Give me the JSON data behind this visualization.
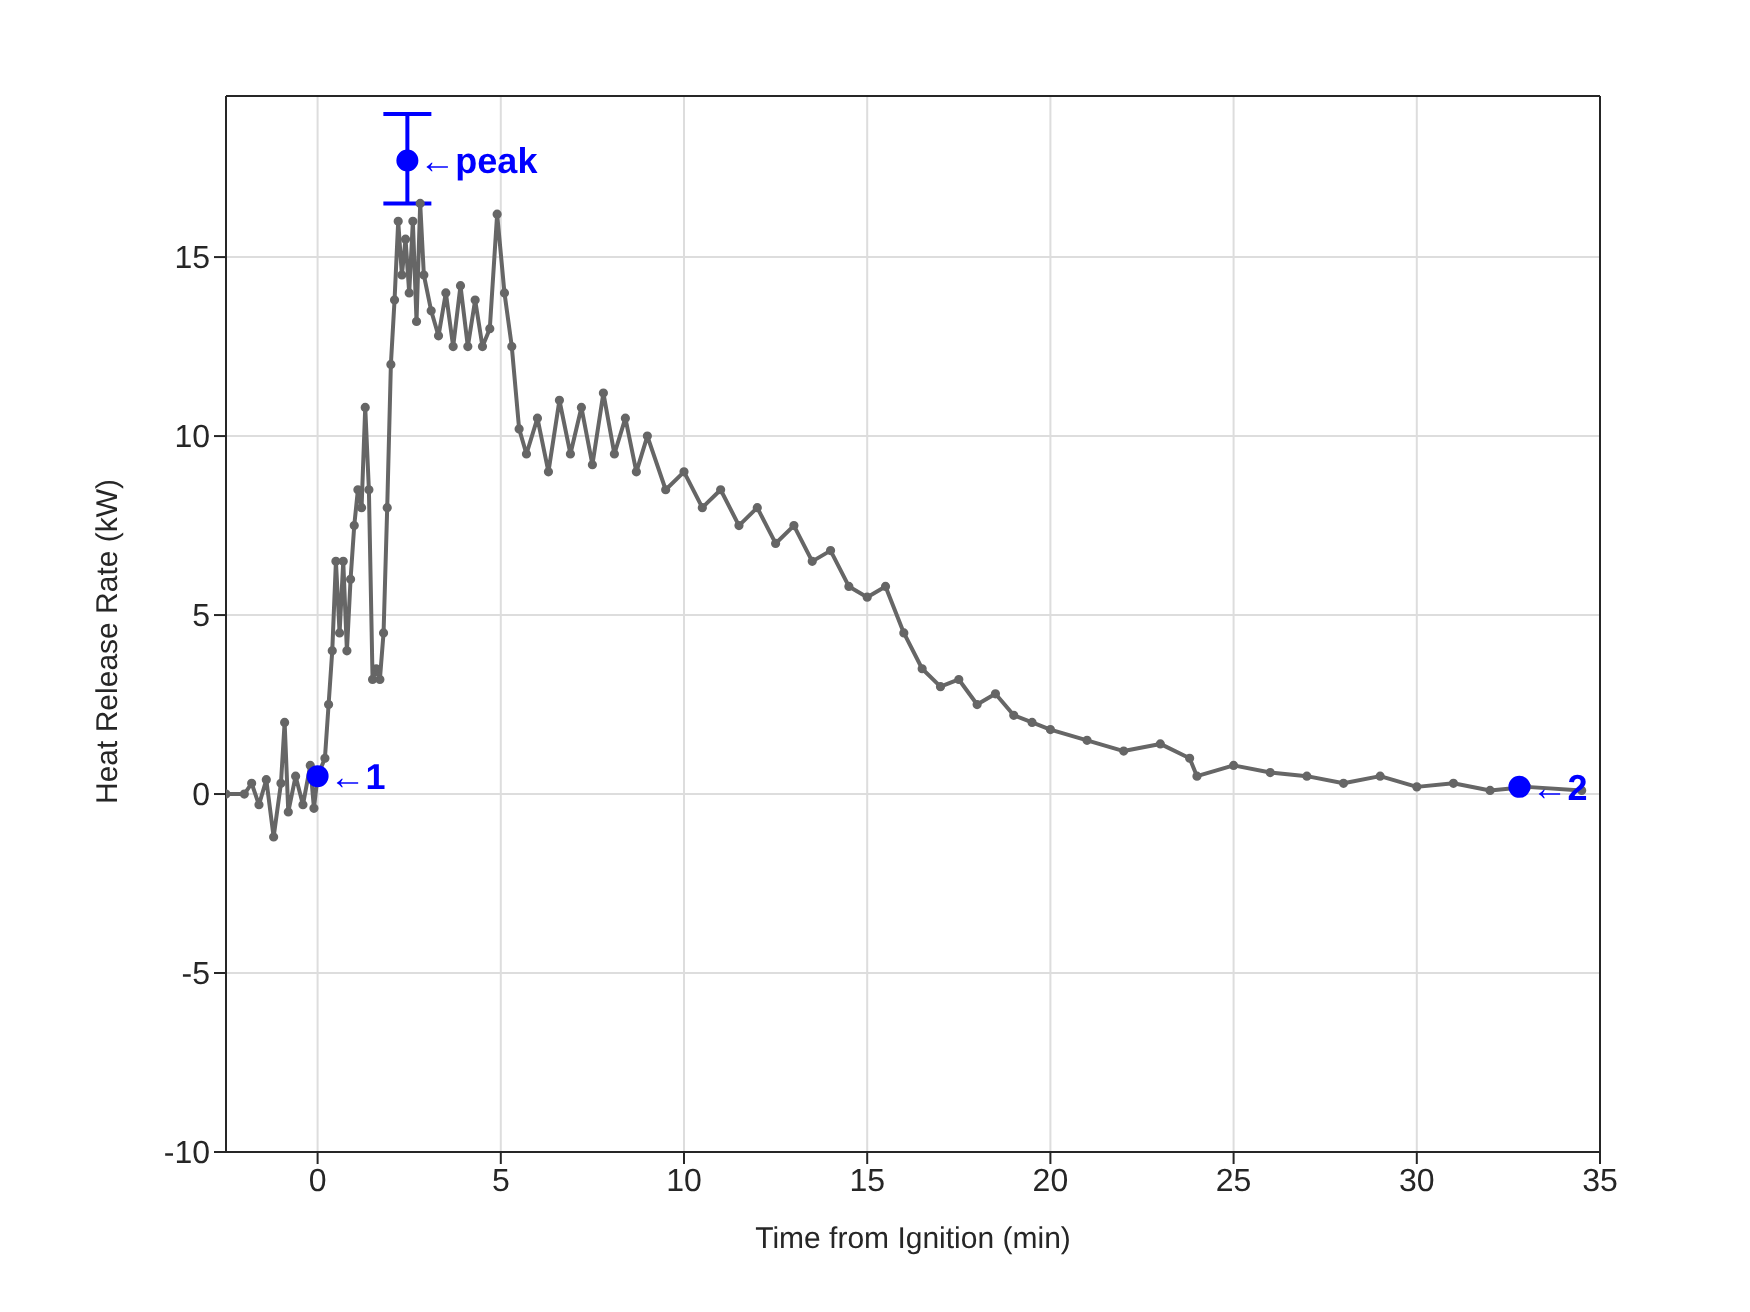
{
  "chart_data": {
    "type": "line",
    "xlabel": "Time from Ignition (min)",
    "ylabel": "Heat Release Rate (kW)",
    "xlim": [
      -2.5,
      35
    ],
    "xticks": [
      0,
      5,
      10,
      15,
      20,
      25,
      30,
      35
    ],
    "ylim": [
      -10,
      19.5
    ],
    "yticks": [
      -10,
      -5,
      0,
      5,
      10,
      15
    ],
    "grid": true,
    "marker": "circle",
    "series": [
      {
        "color": "#666666",
        "x": [
          -2.5,
          -2.0,
          -1.8,
          -1.6,
          -1.4,
          -1.2,
          -1.0,
          -0.9,
          -0.8,
          -0.6,
          -0.4,
          -0.2,
          -0.1,
          0.0,
          0.2,
          0.3,
          0.4,
          0.5,
          0.6,
          0.7,
          0.8,
          0.9,
          1.0,
          1.1,
          1.2,
          1.3,
          1.4,
          1.5,
          1.6,
          1.7,
          1.8,
          1.9,
          2.0,
          2.1,
          2.2,
          2.3,
          2.4,
          2.5,
          2.6,
          2.7,
          2.8,
          2.9,
          3.1,
          3.3,
          3.5,
          3.7,
          3.9,
          4.1,
          4.3,
          4.5,
          4.7,
          4.9,
          5.1,
          5.3,
          5.5,
          5.7,
          6.0,
          6.3,
          6.6,
          6.9,
          7.2,
          7.5,
          7.8,
          8.1,
          8.4,
          8.7,
          9.0,
          9.5,
          10.0,
          10.5,
          11.0,
          11.5,
          12.0,
          12.5,
          13.0,
          13.5,
          14.0,
          14.5,
          15.0,
          15.5,
          16.0,
          16.5,
          17.0,
          17.5,
          18.0,
          18.5,
          19.0,
          19.5,
          20.0,
          21.0,
          22.0,
          23.0,
          23.8,
          24.0,
          25.0,
          26.0,
          27.0,
          28.0,
          29.0,
          30.0,
          31.0,
          32.0,
          33.0,
          34.5
        ],
        "values": [
          0,
          0,
          0.3,
          -0.3,
          0.4,
          -1.2,
          0.3,
          2.0,
          -0.5,
          0.5,
          -0.3,
          0.8,
          -0.4,
          0.5,
          1.0,
          2.5,
          4.0,
          6.5,
          4.5,
          6.5,
          4.0,
          6.0,
          7.5,
          8.5,
          8.0,
          10.8,
          8.5,
          3.2,
          3.5,
          3.2,
          4.5,
          8.0,
          12.0,
          13.8,
          16.0,
          14.5,
          15.5,
          14.0,
          16.0,
          13.2,
          16.5,
          14.5,
          13.5,
          12.8,
          14.0,
          12.5,
          14.2,
          12.5,
          13.8,
          12.5,
          13.0,
          16.2,
          14.0,
          12.5,
          10.2,
          9.5,
          10.5,
          9.0,
          11.0,
          9.5,
          10.8,
          9.2,
          11.2,
          9.5,
          10.5,
          9.0,
          10.0,
          8.5,
          9.0,
          8.0,
          8.5,
          7.5,
          8.0,
          7.0,
          7.5,
          6.5,
          6.8,
          5.8,
          5.5,
          5.8,
          4.5,
          3.5,
          3.0,
          3.2,
          2.5,
          2.8,
          2.2,
          2.0,
          1.8,
          1.5,
          1.2,
          1.4,
          1.0,
          0.5,
          0.8,
          0.6,
          0.5,
          0.3,
          0.5,
          0.2,
          0.3,
          0.1,
          0.2,
          0.1
        ]
      },
      {
        "type": "scatter",
        "color": "#0000ff",
        "x": [
          0,
          2.45,
          32.8
        ],
        "values": [
          0.5,
          17.7,
          0.2
        ],
        "errors": [
          null,
          [
            16.5,
            19.0
          ],
          null
        ]
      }
    ],
    "annotations": [
      {
        "text": "←1",
        "x": 0,
        "y": 0.5
      },
      {
        "text": "←peak",
        "x": 2.45,
        "y": 17.7
      },
      {
        "text": "←2",
        "x": 32.8,
        "y": 0.2
      }
    ]
  }
}
